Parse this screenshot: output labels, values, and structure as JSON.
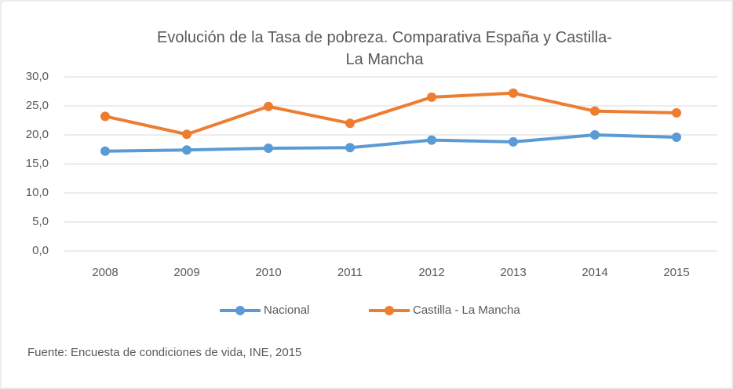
{
  "chart_data": {
    "type": "line",
    "title": "Evolución de la Tasa de pobreza. Comparativa España y Castilla-La Mancha",
    "categories": [
      "2008",
      "2009",
      "2010",
      "2011",
      "2012",
      "2013",
      "2014",
      "2015"
    ],
    "series": [
      {
        "name": "Nacional",
        "color": "#5b9bd5",
        "values": [
          17.2,
          17.4,
          17.7,
          17.8,
          19.1,
          18.8,
          20.0,
          19.6
        ]
      },
      {
        "name": "Castilla - La Mancha",
        "color": "#ed7d31",
        "values": [
          23.2,
          20.1,
          24.9,
          22.0,
          26.5,
          27.2,
          24.1,
          23.8
        ]
      }
    ],
    "ylim": [
      0,
      30
    ],
    "yticks": [
      {
        "value": 0,
        "label": "0,0"
      },
      {
        "value": 5,
        "label": "5,0"
      },
      {
        "value": 10,
        "label": "10,0"
      },
      {
        "value": 15,
        "label": "15,0"
      },
      {
        "value": 20,
        "label": "20,0"
      },
      {
        "value": 25,
        "label": "25,0"
      },
      {
        "value": 30,
        "label": "30,0"
      }
    ],
    "grid": true,
    "legend": "bottom",
    "note": "Fuente: Encuesta de condiciones de vida, INE, 2015"
  }
}
